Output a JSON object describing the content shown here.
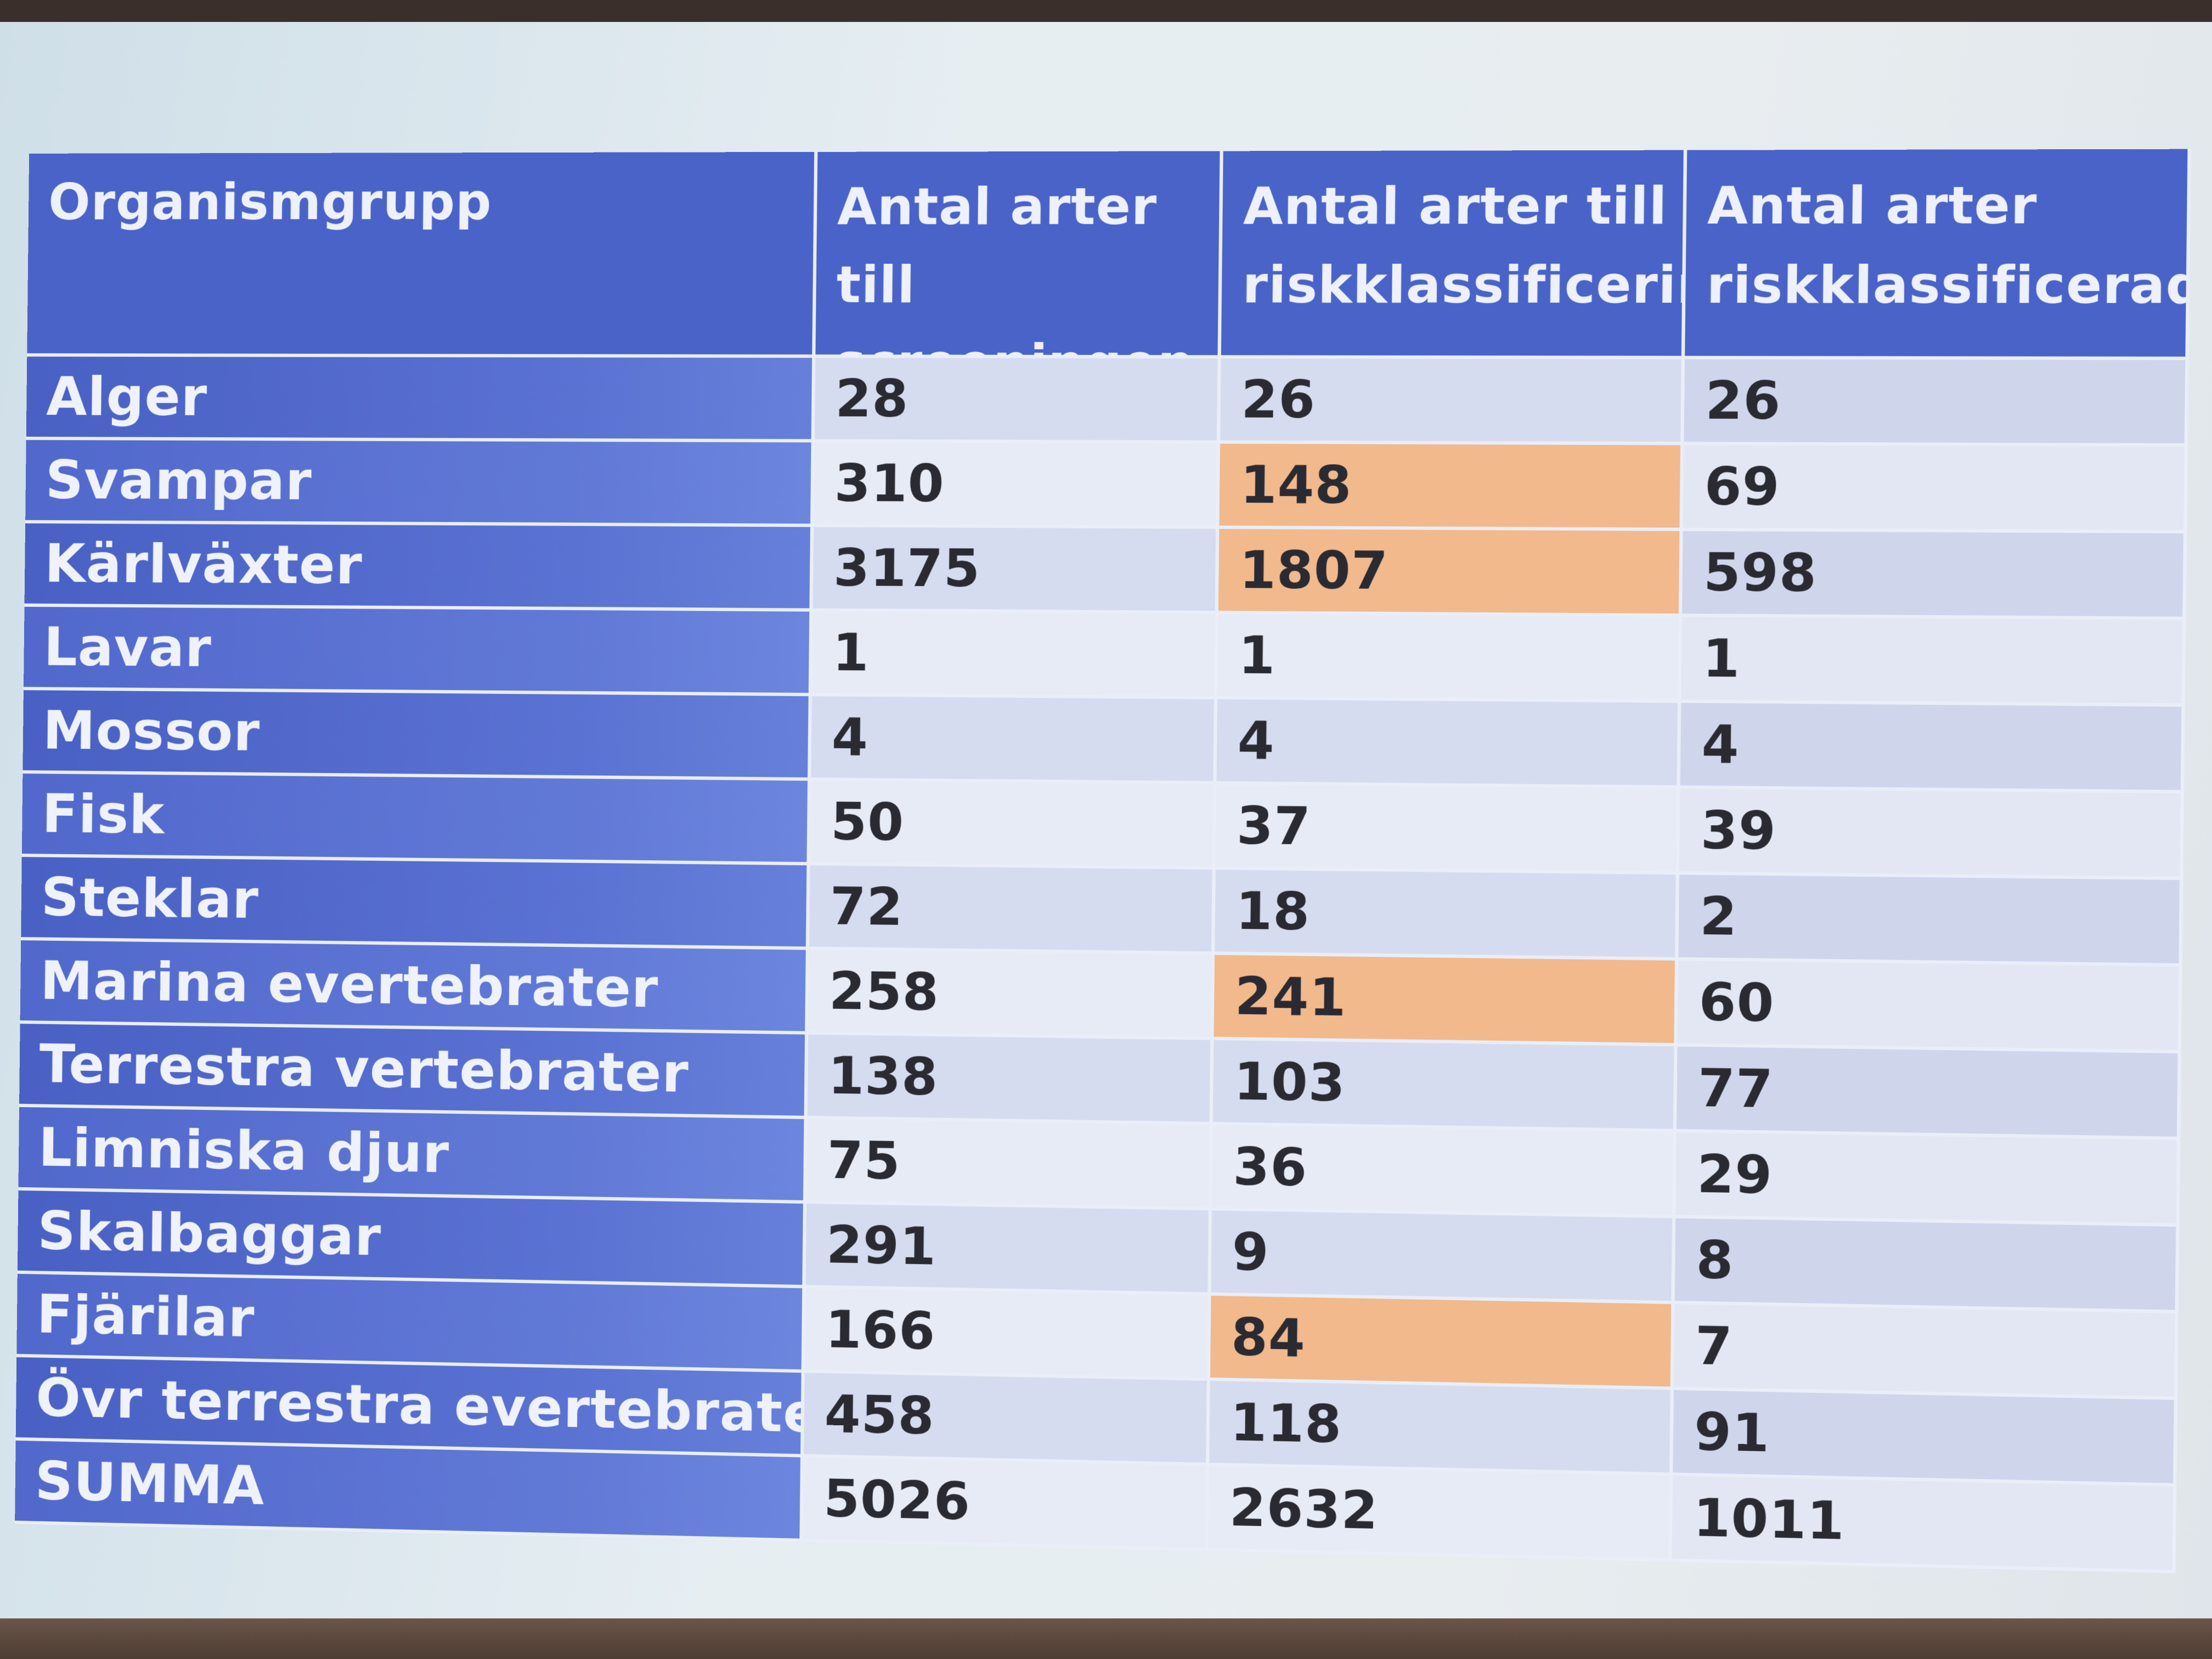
{
  "table": {
    "headers": [
      "Organismgrupp",
      "Antal arter till screeningen",
      "Antal arter till riskklassificering",
      "Antal arter riskklassificerade"
    ],
    "rows": [
      {
        "group": "Alger",
        "screening": "28",
        "riskklassificering": "26",
        "riskklassificerade": "26",
        "highlight_col2": false
      },
      {
        "group": "Svampar",
        "screening": "310",
        "riskklassificering": "148",
        "riskklassificerade": "69",
        "highlight_col2": true
      },
      {
        "group": "Kärlväxter",
        "screening": "3175",
        "riskklassificering": "1807",
        "riskklassificerade": "598",
        "highlight_col2": true
      },
      {
        "group": "Lavar",
        "screening": "1",
        "riskklassificering": "1",
        "riskklassificerade": "1",
        "highlight_col2": false
      },
      {
        "group": "Mossor",
        "screening": "4",
        "riskklassificering": "4",
        "riskklassificerade": "4",
        "highlight_col2": false
      },
      {
        "group": "Fisk",
        "screening": "50",
        "riskklassificering": "37",
        "riskklassificerade": "39",
        "highlight_col2": false
      },
      {
        "group": "Steklar",
        "screening": "72",
        "riskklassificering": "18",
        "riskklassificerade": "2",
        "highlight_col2": false
      },
      {
        "group": "Marina evertebrater",
        "screening": "258",
        "riskklassificering": "241",
        "riskklassificerade": "60",
        "highlight_col2": true
      },
      {
        "group": "Terrestra vertebrater",
        "screening": "138",
        "riskklassificering": "103",
        "riskklassificerade": "77",
        "highlight_col2": false
      },
      {
        "group": "Limniska djur",
        "screening": "75",
        "riskklassificering": "36",
        "riskklassificerade": "29",
        "highlight_col2": false
      },
      {
        "group": "Skalbaggar",
        "screening": "291",
        "riskklassificering": "9",
        "riskklassificerade": "8",
        "highlight_col2": false
      },
      {
        "group": "Fjärilar",
        "screening": "166",
        "riskklassificering": "84",
        "riskklassificerade": "7",
        "highlight_col2": true
      },
      {
        "group": "Övr terrestra evertebrater",
        "screening": "458",
        "riskklassificering": "118",
        "riskklassificerade": "91",
        "highlight_col2": false
      },
      {
        "group": "SUMMA",
        "screening": "5026",
        "riskklassificering": "2632",
        "riskklassificerade": "1011",
        "highlight_col2": false
      }
    ]
  },
  "colors": {
    "header_blue": "#4a63c8",
    "highlight_orange": "#f2b98c"
  }
}
